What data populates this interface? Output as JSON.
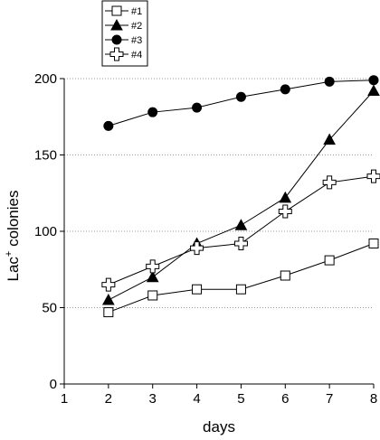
{
  "chart_data": {
    "type": "line",
    "xlabel": "days",
    "ylabel": {
      "prefix": "Lac",
      "sup": "+",
      "suffix": " colonies"
    },
    "xlim": [
      1,
      8
    ],
    "ylim": [
      0,
      200
    ],
    "x_ticks": [
      "1",
      "2",
      "3",
      "4",
      "5",
      "6",
      "7",
      "8"
    ],
    "y_ticks": [
      "0",
      "50",
      "100",
      "150",
      "200"
    ],
    "grid": "horizontal dotted",
    "legend_position": "top-left",
    "x": [
      2,
      3,
      4,
      5,
      6,
      7,
      8
    ],
    "series": [
      {
        "name": "#1",
        "marker": "open-square",
        "values": [
          47,
          58,
          62,
          62,
          71,
          81,
          92
        ]
      },
      {
        "name": "#2",
        "marker": "filled-triangle",
        "values": [
          55,
          70,
          92,
          104,
          122,
          160,
          192
        ]
      },
      {
        "name": "#3",
        "marker": "filled-circle",
        "values": [
          169,
          178,
          181,
          188,
          193,
          198,
          199
        ]
      },
      {
        "name": "#4",
        "marker": "open-cross",
        "values": [
          65,
          77,
          89,
          92,
          113,
          132,
          136
        ]
      }
    ]
  }
}
